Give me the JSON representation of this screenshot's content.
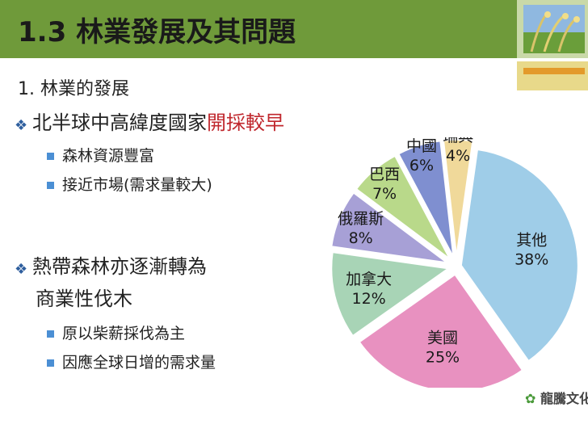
{
  "header": {
    "title": "1.3 林業發展及其問題"
  },
  "body": {
    "heading": "1. 林業的發展",
    "bullet1": {
      "prefix": "北半球中高緯度國家",
      "highlight": "開採較早"
    },
    "sub1": [
      "森林資源豐富",
      "接近市場(需求量較大)"
    ],
    "bullet2_line1": "熱帶森林亦逐漸轉為",
    "bullet2_line2": "商業性伐木",
    "sub2": [
      "原以柴薪採伐為主",
      "因應全球日增的需求量"
    ]
  },
  "chart_data": {
    "type": "pie",
    "categories": [
      "其他",
      "美國",
      "加拿大",
      "俄羅斯",
      "巴西",
      "中國",
      "瑞典"
    ],
    "values": [
      38,
      25,
      12,
      8,
      7,
      6,
      4
    ],
    "value_labels": [
      "38%",
      "25%",
      "12%",
      "8%",
      "7%",
      "6%",
      "4%"
    ],
    "colors": [
      "#9fcde8",
      "#e891c0",
      "#a8d4b6",
      "#a7a0d6",
      "#b9d98a",
      "#7f8fd0",
      "#f0d99a"
    ]
  },
  "footer": {
    "brand": "龍騰文化"
  }
}
